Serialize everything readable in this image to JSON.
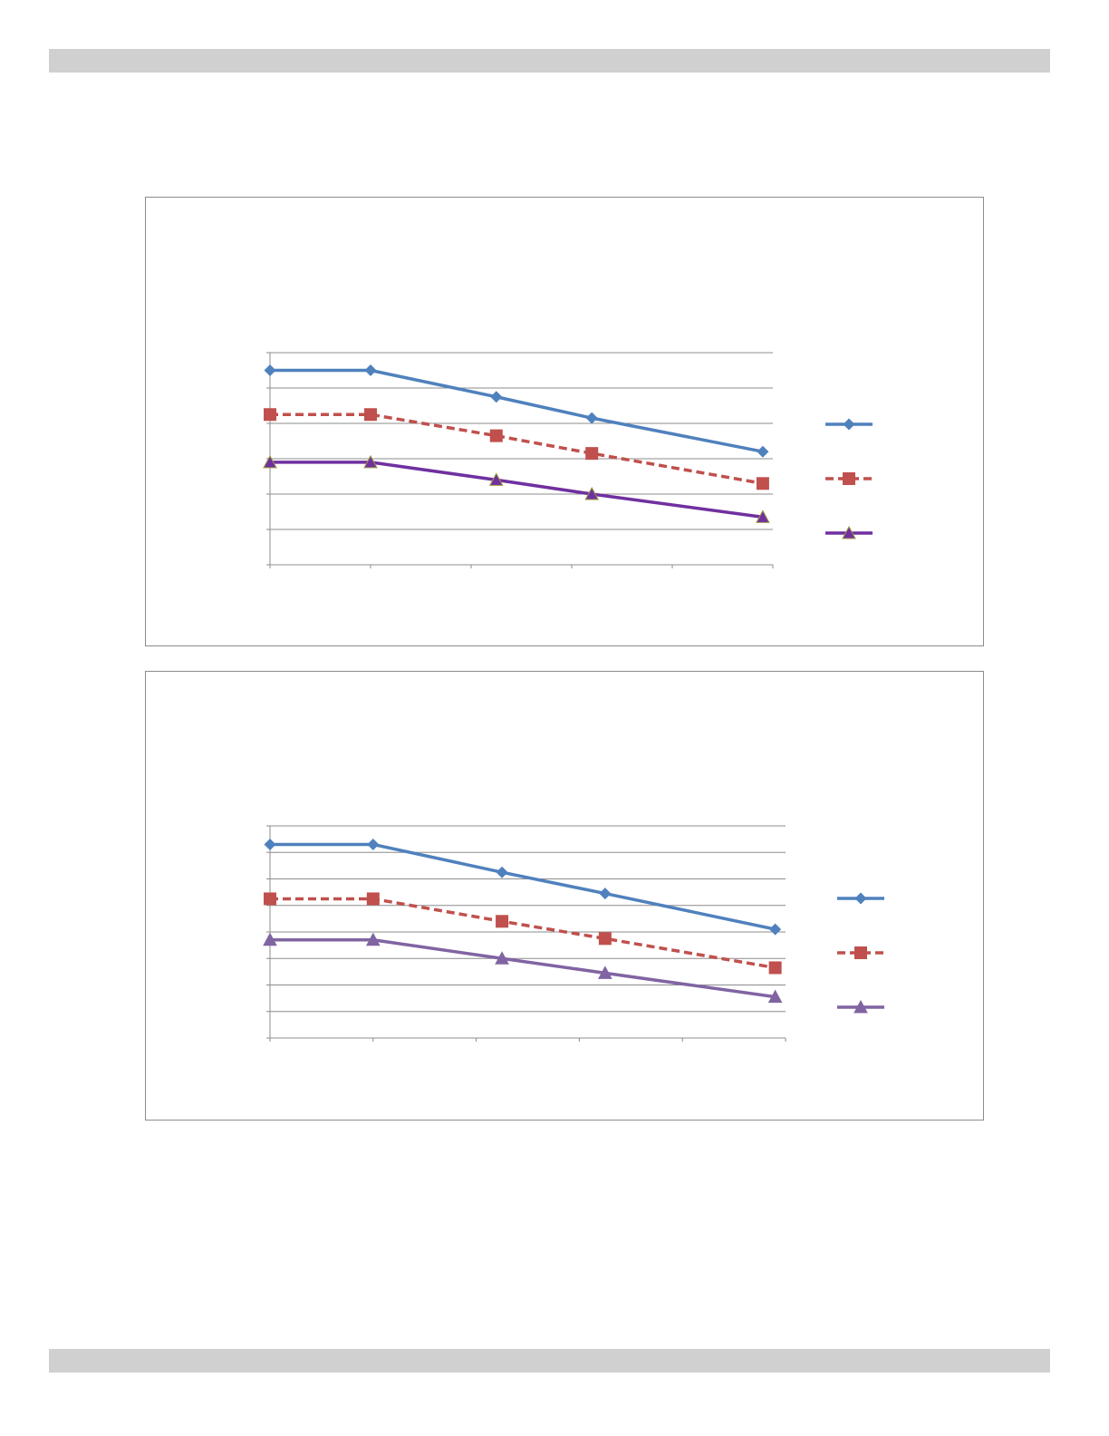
{
  "colors": {
    "page_bar": "#d0d0d0",
    "frame_border": "#8c8c8c",
    "gridline": "#8c8c8c",
    "series_1": "#4f81bd",
    "series_2": "#c0504d",
    "series_3": "#7030a0",
    "series_3_chart2": "#8064a2",
    "triangle_edge_chart1": "#9b9b3c"
  },
  "chart_data": [
    {
      "type": "line",
      "x": [
        0,
        1,
        2.25,
        3.2,
        4.9
      ],
      "x_categories_slots": 5,
      "ylim": [
        0,
        6
      ],
      "y_gridline_count": 6,
      "grid": true,
      "legend": "right",
      "series": [
        {
          "marker": "diamond",
          "line": "solid",
          "values": [
            5.5,
            5.5,
            4.75,
            4.15,
            3.2
          ]
        },
        {
          "marker": "square",
          "line": "dashed",
          "values": [
            4.25,
            4.25,
            3.65,
            3.15,
            2.3
          ]
        },
        {
          "marker": "triangle",
          "line": "solid",
          "values": [
            2.9,
            2.9,
            2.4,
            2.0,
            1.35
          ]
        }
      ]
    },
    {
      "type": "line",
      "x": [
        0,
        1,
        2.25,
        3.25,
        4.9
      ],
      "x_categories_slots": 5,
      "ylim": [
        0,
        8
      ],
      "y_gridline_count": 8,
      "grid": true,
      "legend": "right",
      "series": [
        {
          "marker": "diamond",
          "line": "solid",
          "values": [
            7.3,
            7.3,
            6.25,
            5.45,
            4.1
          ]
        },
        {
          "marker": "square",
          "line": "dashed",
          "values": [
            5.25,
            5.25,
            4.4,
            3.75,
            2.65
          ]
        },
        {
          "marker": "triangle",
          "line": "solid",
          "values": [
            3.7,
            3.7,
            3.0,
            2.45,
            1.55
          ]
        }
      ]
    }
  ]
}
